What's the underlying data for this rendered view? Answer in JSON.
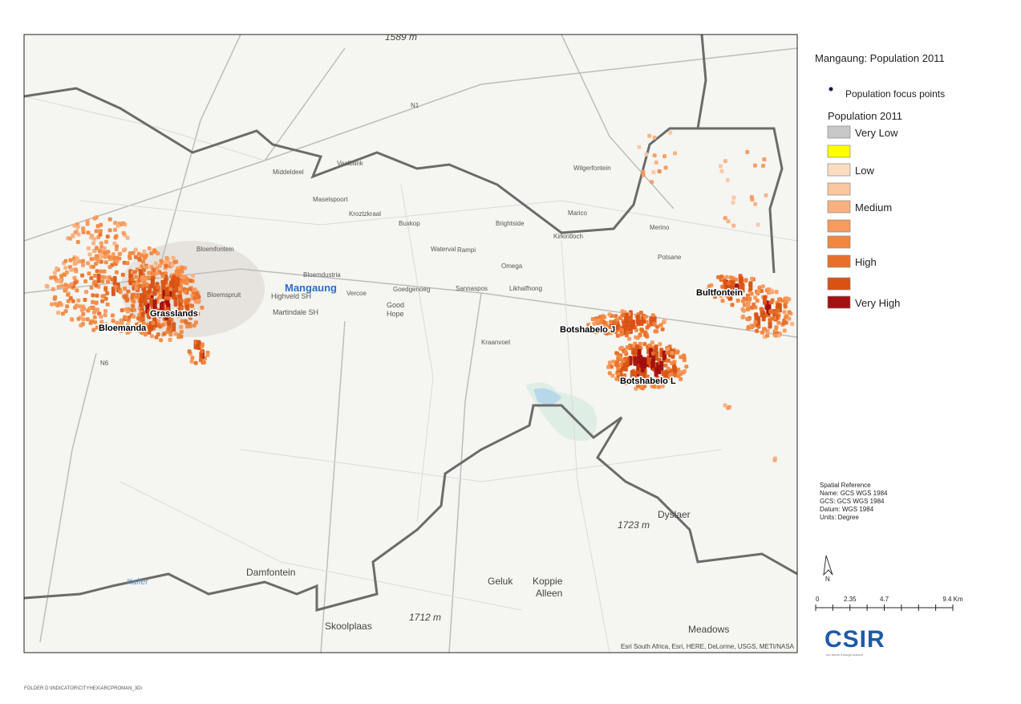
{
  "map": {
    "places": {
      "mangaung": "Mangaung",
      "bloemanda": "Bloemanda",
      "grasslands": "Grasslands",
      "botshabelo_j": "Botshabelo J",
      "botshabelo_l": "Botshabelo L",
      "bultfontein": "Bultfontein",
      "damfontein": "Damfontein",
      "skoolplaas": "Skoolplaas",
      "geluk": "Geluk",
      "koppie": "Koppie",
      "alleen": "Alleen",
      "meadows": "Meadows",
      "h1712": "1712 m",
      "h1723": "1723 m",
      "h1589": "1589 m",
      "dyslaer": "Dyslaer",
      "good": "Good",
      "hope": "Hope",
      "martindale": "Martindale SH",
      "highveld": "Highveld SH",
      "vercoe": "Vercoe",
      "goedgenoeg": "Goedgenoeg",
      "sannaspos": "Sannaspos",
      "likhalfhong": "Likhalfhong",
      "bloemdustria": "Bloemdustria",
      "waterval": "Waterval",
      "rampi": "Rampi",
      "omega": "Omega",
      "kraanvoel": "Kraanvoel",
      "buxkop": "Buxkop",
      "kroztzkraal": "Kroztzkraal",
      "maselspoort": "Maselspoort",
      "middeldeel": "Middeldeel",
      "vaalbank": "Vaalbank",
      "brightside": "Brightside",
      "kirkintloch": "Kirkintloch",
      "marico": "Marico",
      "wilgerfontein": "Wilgerfontein",
      "merino": "Merino",
      "potsane": "Potsane",
      "bloemfontein": "Bloemfontein",
      "bloemspruit": "Bloemspruit",
      "kaffer": "Kaffer",
      "n1": "N1",
      "n6": "N6"
    },
    "attribution": "Esri South Africa, Esri, HERE, DeLorme, USGS, METI/NASA"
  },
  "legend": {
    "title": "Mangaung: Population 2011",
    "points_label": "Population focus points",
    "points_color": "#0b1a5c",
    "classes_title": "Population 2011",
    "classes": [
      {
        "label": "Very Low",
        "color": "#c8c8c8"
      },
      {
        "label": null,
        "color": "#ffff00"
      },
      {
        "label": "Low",
        "color": "#fcdcc0"
      },
      {
        "label": null,
        "color": "#fbc79f"
      },
      {
        "label": "Medium",
        "color": "#f9b07f"
      },
      {
        "label": null,
        "color": "#f69a5e"
      },
      {
        "label": null,
        "color": "#f2883f"
      },
      {
        "label": "High",
        "color": "#e8702a"
      },
      {
        "label": null,
        "color": "#d95213"
      },
      {
        "label": "Very High",
        "color": "#a3100f"
      }
    ]
  },
  "spatial_reference": [
    "Spatial Reference",
    "Name: GCS WGS 1984",
    "GCS: GCS WGS 1984",
    "Datum: WGS 1984",
    "Units: Degree"
  ],
  "north": "N",
  "scale": [
    "0",
    "2.35",
    "4.7",
    "9.4 Km"
  ],
  "logo": {
    "name": "CSIR",
    "tagline": "our future through science"
  },
  "footer": "FOLDER D:\\INDICATOR\\CITYHEX\\ARCPROMAN_3D\\"
}
